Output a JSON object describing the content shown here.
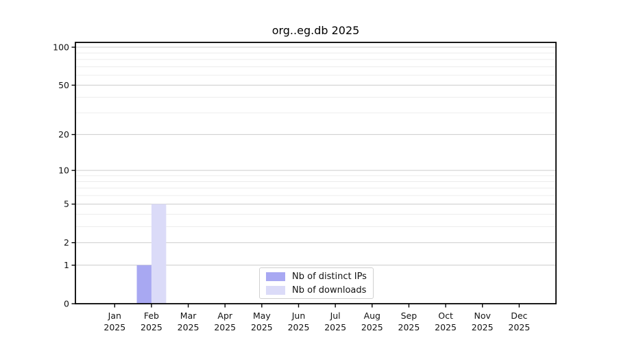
{
  "chart_data": {
    "type": "bar",
    "title": "org..eg.db 2025",
    "year_label": "2025",
    "months": [
      "Jan",
      "Feb",
      "Mar",
      "Apr",
      "May",
      "Jun",
      "Jul",
      "Aug",
      "Sep",
      "Oct",
      "Nov",
      "Dec"
    ],
    "series": [
      {
        "name": "Nb of distinct IPs",
        "color": "#a8a8f2",
        "values": [
          0,
          1,
          0,
          0,
          0,
          0,
          0,
          0,
          0,
          0,
          0,
          0
        ]
      },
      {
        "name": "Nb of downloads",
        "color": "#dbdbf8",
        "values": [
          0,
          5,
          0,
          0,
          0,
          0,
          0,
          0,
          0,
          0,
          0,
          0
        ]
      }
    ],
    "y_scale": "log1p",
    "ylim": [
      0,
      110
    ],
    "y_ticks": [
      0,
      1,
      2,
      5,
      10,
      20,
      50,
      100
    ],
    "grid": {
      "major": [
        1,
        2,
        5,
        10,
        20,
        50,
        100
      ],
      "minor": [
        3,
        4,
        6,
        7,
        8,
        9,
        30,
        40,
        60,
        70,
        80,
        90
      ]
    },
    "legend_position": "lower-center",
    "colors": {
      "spine": "#000000",
      "tick_label": "#111111",
      "grid_major": "#cccccc",
      "grid_minor": "#ececec",
      "background": "#ffffff"
    }
  }
}
